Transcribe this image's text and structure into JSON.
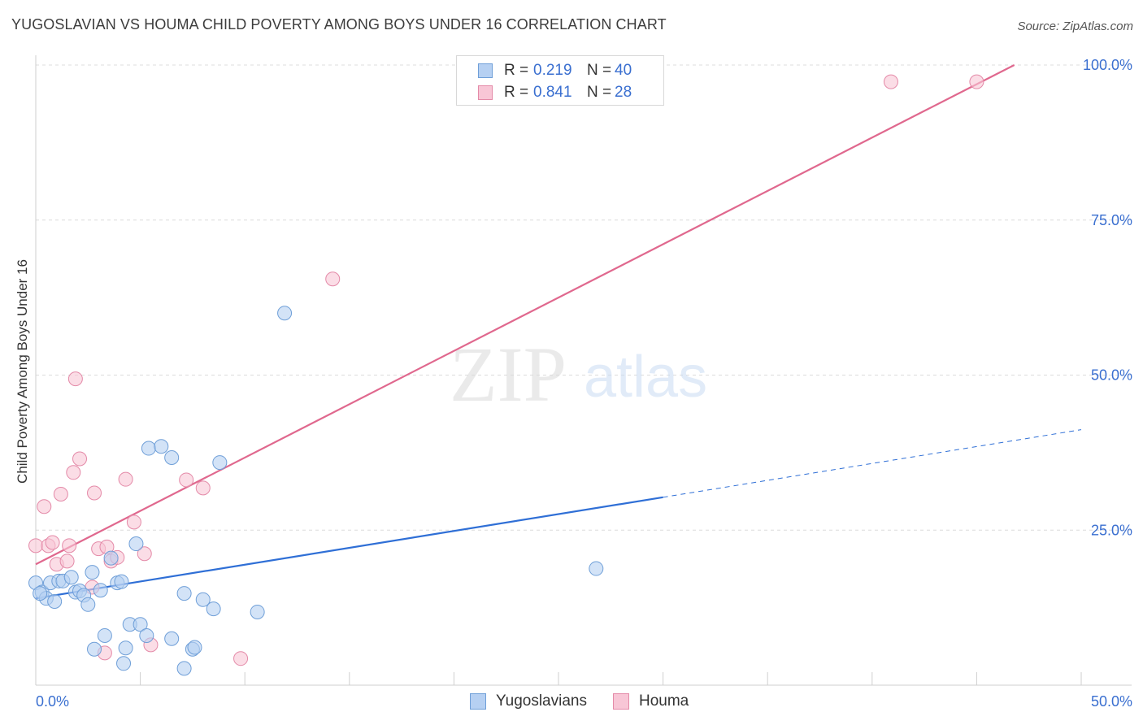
{
  "header": {
    "title": "YUGOSLAVIAN VS HOUMA CHILD POVERTY AMONG BOYS UNDER 16 CORRELATION CHART",
    "source": "Source: ZipAtlas.com"
  },
  "watermark": {
    "zip": "ZIP",
    "atlas": "atlas"
  },
  "legend": {
    "rows": [
      {
        "r_label": "R =",
        "r_value": "0.219",
        "n_label": "N =",
        "n_value": "40"
      },
      {
        "r_label": "R =",
        "r_value": "0.841",
        "n_label": "N =",
        "n_value": "28"
      }
    ],
    "series": [
      "Yugoslavians",
      "Houma"
    ]
  },
  "colors": {
    "blue_fill": "#b6d0f2",
    "blue_stroke": "#6f9fd8",
    "blue_line": "#2f6fd6",
    "pink_fill": "#f8c6d6",
    "pink_stroke": "#e48aa8",
    "pink_line": "#e0688e",
    "axis_label": "#3a6fd0",
    "grid": "#dcdcdc"
  },
  "chart_data": {
    "type": "scatter",
    "title": "YUGOSLAVIAN VS HOUMA CHILD POVERTY AMONG BOYS UNDER 16 CORRELATION CHART",
    "xlabel": "",
    "ylabel": "Child Poverty Among Boys Under 16",
    "xlim": [
      0,
      50
    ],
    "ylim": [
      0,
      100
    ],
    "x_tick_labels": [
      "0.0%",
      "50.0%"
    ],
    "y_tick_labels": [
      "25.0%",
      "50.0%",
      "75.0%",
      "100.0%"
    ],
    "y_ticks": [
      25,
      50,
      75,
      100
    ],
    "series": [
      {
        "name": "Yugoslavians",
        "r": 0.219,
        "n": 40,
        "points": [
          [
            0.0,
            16.5
          ],
          [
            0.3,
            15.0
          ],
          [
            0.5,
            14.0
          ],
          [
            0.7,
            16.5
          ],
          [
            0.9,
            13.5
          ],
          [
            1.1,
            16.8
          ],
          [
            1.3,
            16.8
          ],
          [
            1.7,
            17.4
          ],
          [
            1.9,
            15.0
          ],
          [
            2.1,
            15.2
          ],
          [
            2.3,
            14.5
          ],
          [
            2.5,
            13.0
          ],
          [
            2.7,
            18.2
          ],
          [
            3.1,
            15.3
          ],
          [
            3.3,
            8.0
          ],
          [
            2.8,
            5.8
          ],
          [
            3.6,
            20.5
          ],
          [
            3.9,
            16.5
          ],
          [
            4.1,
            16.7
          ],
          [
            4.3,
            6.0
          ],
          [
            4.2,
            3.5
          ],
          [
            4.5,
            9.8
          ],
          [
            4.8,
            22.8
          ],
          [
            5.0,
            9.8
          ],
          [
            5.3,
            8.0
          ],
          [
            5.4,
            38.2
          ],
          [
            6.0,
            38.5
          ],
          [
            6.5,
            36.7
          ],
          [
            6.5,
            7.5
          ],
          [
            7.1,
            14.8
          ],
          [
            7.1,
            2.7
          ],
          [
            7.5,
            5.8
          ],
          [
            7.6,
            6.1
          ],
          [
            8.0,
            13.8
          ],
          [
            8.5,
            12.3
          ],
          [
            8.8,
            35.9
          ],
          [
            10.6,
            11.8
          ],
          [
            11.9,
            60.0
          ],
          [
            26.8,
            18.8
          ],
          [
            0.2,
            14.8
          ]
        ],
        "trend": {
          "x0": 0,
          "y0": 14.0,
          "x1": 30,
          "y1": 30.3,
          "dash_x1": 50,
          "dash_y1": 41.2
        }
      },
      {
        "name": "Houma",
        "r": 0.841,
        "n": 28,
        "points": [
          [
            0.0,
            22.5
          ],
          [
            0.4,
            28.8
          ],
          [
            0.6,
            22.5
          ],
          [
            0.8,
            23.0
          ],
          [
            1.0,
            19.5
          ],
          [
            1.2,
            30.8
          ],
          [
            1.5,
            20.0
          ],
          [
            1.6,
            22.5
          ],
          [
            1.8,
            34.3
          ],
          [
            1.9,
            49.4
          ],
          [
            2.1,
            36.5
          ],
          [
            2.8,
            31.0
          ],
          [
            2.7,
            15.8
          ],
          [
            3.0,
            22.0
          ],
          [
            3.3,
            5.2
          ],
          [
            3.4,
            22.3
          ],
          [
            3.6,
            20.0
          ],
          [
            3.9,
            20.6
          ],
          [
            4.3,
            33.2
          ],
          [
            4.7,
            26.3
          ],
          [
            5.2,
            21.2
          ],
          [
            5.5,
            6.5
          ],
          [
            7.2,
            33.1
          ],
          [
            8.0,
            31.8
          ],
          [
            9.8,
            4.3
          ],
          [
            14.2,
            65.5
          ],
          [
            40.9,
            97.3
          ],
          [
            45.0,
            97.3
          ]
        ],
        "trend": {
          "x0": 0,
          "y0": 19.5,
          "x1": 46.8,
          "y1": 100
        }
      }
    ]
  }
}
